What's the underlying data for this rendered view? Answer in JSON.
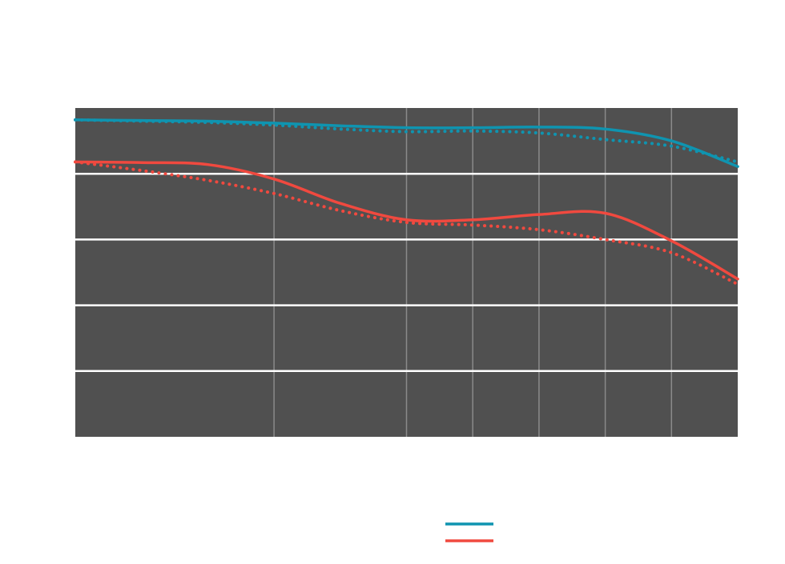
{
  "chart_data": {
    "type": "line",
    "title": "",
    "xlabel": "",
    "ylabel": "",
    "xlim": [
      0,
      10
    ],
    "ylim": [
      0,
      5
    ],
    "x_grid": [
      3,
      5,
      6,
      7,
      8,
      9
    ],
    "y_grid": [
      1,
      2,
      3,
      4
    ],
    "grid": true,
    "legend_position": "bottom-center",
    "colors": {
      "plot_background": "#505050",
      "page_background": "#ffffff",
      "y_gridline": "#ffffff",
      "x_gridline": "#8a8a8a",
      "series_teal": "#0f94b0",
      "series_red": "#f0493f"
    },
    "series": [
      {
        "name": "",
        "color": "#0f94b0",
        "style": "solid",
        "points": [
          [
            0,
            4.82
          ],
          [
            1,
            4.81
          ],
          [
            2,
            4.8
          ],
          [
            3,
            4.77
          ],
          [
            4,
            4.73
          ],
          [
            5,
            4.7
          ],
          [
            6,
            4.7
          ],
          [
            7,
            4.71
          ],
          [
            8,
            4.68
          ],
          [
            9,
            4.5
          ],
          [
            10,
            4.11
          ]
        ]
      },
      {
        "name": "",
        "color": "#0f94b0",
        "style": "dotted",
        "points": [
          [
            0,
            4.82
          ],
          [
            1,
            4.8
          ],
          [
            2,
            4.78
          ],
          [
            3,
            4.74
          ],
          [
            4,
            4.68
          ],
          [
            5,
            4.64
          ],
          [
            6,
            4.65
          ],
          [
            7,
            4.62
          ],
          [
            8,
            4.52
          ],
          [
            9,
            4.42
          ],
          [
            10,
            4.18
          ]
        ]
      },
      {
        "name": "",
        "color": "#f0493f",
        "style": "solid",
        "points": [
          [
            0,
            4.18
          ],
          [
            1,
            4.17
          ],
          [
            2,
            4.14
          ],
          [
            3,
            3.92
          ],
          [
            4,
            3.55
          ],
          [
            5,
            3.3
          ],
          [
            6,
            3.3
          ],
          [
            7,
            3.38
          ],
          [
            8,
            3.4
          ],
          [
            9,
            2.98
          ],
          [
            10,
            2.4
          ]
        ]
      },
      {
        "name": "",
        "color": "#f0493f",
        "style": "dotted",
        "points": [
          [
            0,
            4.18
          ],
          [
            1,
            4.05
          ],
          [
            2,
            3.9
          ],
          [
            3,
            3.7
          ],
          [
            4,
            3.44
          ],
          [
            5,
            3.26
          ],
          [
            6,
            3.22
          ],
          [
            7,
            3.15
          ],
          [
            8,
            3.0
          ],
          [
            9,
            2.8
          ],
          [
            10,
            2.32
          ]
        ]
      }
    ],
    "legend": [
      {
        "label": "",
        "color": "#0f94b0"
      },
      {
        "label": "",
        "color": "#f0493f"
      }
    ]
  }
}
